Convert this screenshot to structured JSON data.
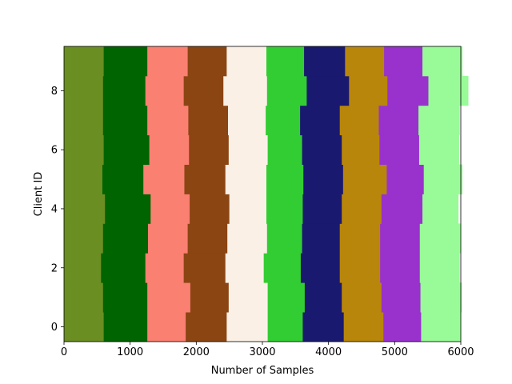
{
  "chart_data": {
    "type": "bar",
    "orientation": "horizontal-stacked",
    "xlabel": "Number of Samples",
    "ylabel": "Client ID",
    "xlim": [
      0,
      6000
    ],
    "ylim": [
      -0.5,
      9.5
    ],
    "xticks": [
      0,
      1000,
      2000,
      3000,
      4000,
      5000,
      6000
    ],
    "yticks": [
      0,
      2,
      4,
      6,
      8
    ],
    "grid": false,
    "categories": [
      0,
      1,
      2,
      3,
      4,
      5,
      6,
      7,
      8,
      9
    ],
    "series": [
      {
        "color": "#6b8e23",
        "values": [
          600,
          590,
          560,
          590,
          620,
          580,
          600,
          590,
          590,
          600
        ]
      },
      {
        "color": "#006400",
        "values": [
          660,
          670,
          670,
          680,
          690,
          620,
          690,
          670,
          640,
          660
        ]
      },
      {
        "color": "#fa8072",
        "values": [
          580,
          650,
          580,
          600,
          590,
          620,
          600,
          620,
          580,
          610
        ]
      },
      {
        "color": "#8b4513",
        "values": [
          620,
          580,
          630,
          600,
          600,
          620,
          600,
          600,
          600,
          590
        ]
      },
      {
        "color": "#faf0e6",
        "values": [
          620,
          590,
          580,
          600,
          560,
          620,
          590,
          570,
          660,
          600
        ]
      },
      {
        "color": "#32cd32",
        "values": [
          530,
          560,
          560,
          530,
          550,
          560,
          520,
          520,
          600,
          570
        ]
      },
      {
        "color": "#191970",
        "values": [
          620,
          560,
          590,
          570,
          590,
          600,
          600,
          600,
          640,
          620
        ]
      },
      {
        "color": "#b8860b",
        "values": [
          600,
          600,
          610,
          610,
          600,
          660,
          570,
          590,
          580,
          590
        ]
      },
      {
        "color": "#9932cc",
        "values": [
          570,
          590,
          600,
          600,
          620,
          560,
          600,
          600,
          620,
          580
        ]
      },
      {
        "color": "#98fb98",
        "values": [
          600,
          620,
          600,
          620,
          540,
          580,
          600,
          620,
          600,
          600
        ]
      }
    ]
  }
}
